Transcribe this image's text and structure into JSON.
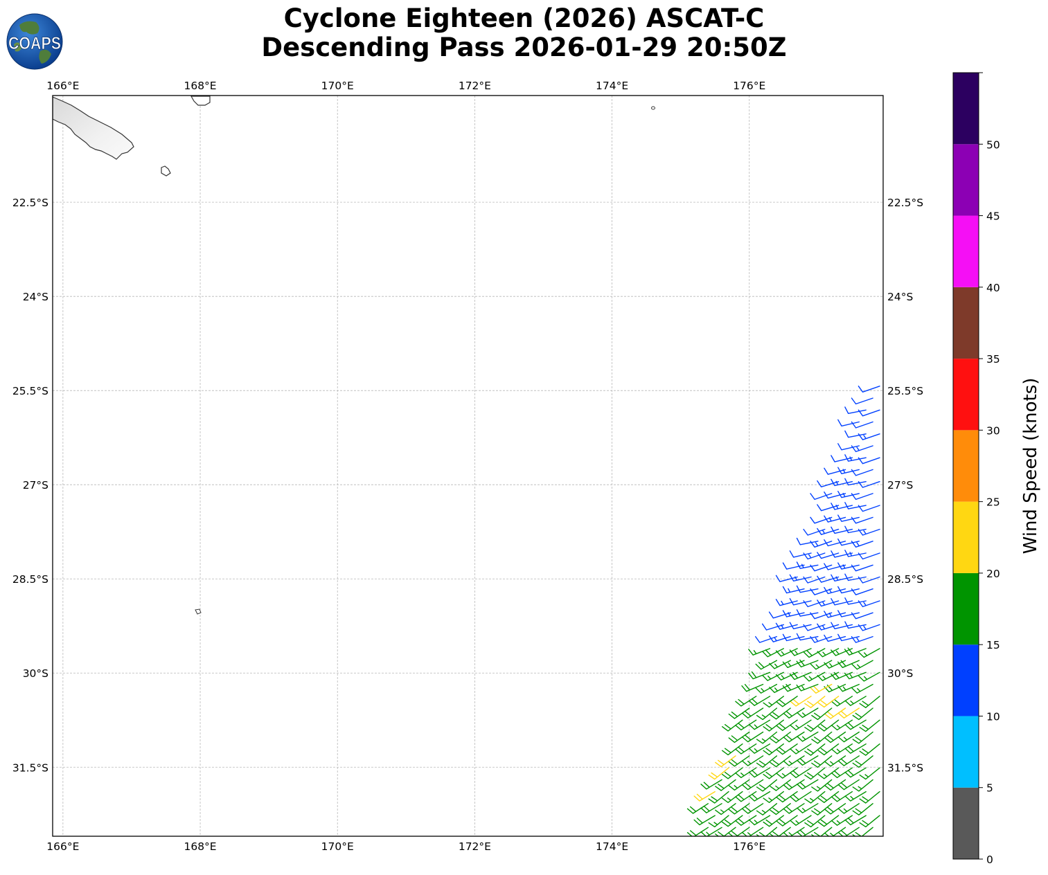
{
  "title": {
    "line1": "Cyclone Eighteen (2026) ASCAT-C",
    "line2": "Descending Pass 2026-01-29 20:50Z"
  },
  "logo": {
    "text": "COAPS"
  },
  "map": {
    "lon_range": [
      165.85,
      177.95
    ],
    "lat_range": [
      -20.8,
      -32.6
    ],
    "lon_ticks": [
      166,
      168,
      170,
      172,
      174,
      176
    ],
    "lon_tick_labels": [
      "166°E",
      "168°E",
      "170°E",
      "172°E",
      "174°E",
      "176°E"
    ],
    "lat_ticks": [
      -22.5,
      -24,
      -25.5,
      -27,
      -28.5,
      -30,
      -31.5
    ],
    "lat_tick_labels": [
      "22.5°S",
      "24°S",
      "25.5°S",
      "27°S",
      "28.5°S",
      "30°S",
      "31.5°S"
    ],
    "gridlines": true
  },
  "colorbar": {
    "label": "Wind Speed (knots)",
    "ticks": [
      0,
      5,
      10,
      15,
      20,
      25,
      30,
      35,
      40,
      45,
      50
    ],
    "tick_labels": [
      "0",
      "5",
      "10",
      "15",
      "20",
      "25",
      "30",
      "35",
      "40",
      "45",
      "50"
    ],
    "bins": [
      {
        "min": 0,
        "max": 5,
        "color": "#595959"
      },
      {
        "min": 5,
        "max": 10,
        "color": "#00bfff"
      },
      {
        "min": 10,
        "max": 15,
        "color": "#0040ff"
      },
      {
        "min": 15,
        "max": 20,
        "color": "#009400"
      },
      {
        "min": 20,
        "max": 25,
        "color": "#ffd712"
      },
      {
        "min": 25,
        "max": 30,
        "color": "#ff8c0a"
      },
      {
        "min": 30,
        "max": 35,
        "color": "#ff1010"
      },
      {
        "min": 35,
        "max": 40,
        "color": "#7e3a2a"
      },
      {
        "min": 40,
        "max": 45,
        "color": "#f50ff5"
      },
      {
        "min": 45,
        "max": 50,
        "color": "#8c00b4"
      },
      {
        "min": 50,
        "max": 55,
        "color": "#2c0060"
      }
    ]
  },
  "chart_data": {
    "type": "scatter",
    "description_units": "wind barbs: lon (°E), lat (°N, negative = south), wind speed (knots), direction wind blows from (degrees)",
    "swath_edge": [
      [
        177.9,
        -25.0
      ],
      [
        175.15,
        -32.6
      ]
    ],
    "wind_bands": [
      {
        "lat_min": -29.6,
        "lat_max": -25.0,
        "speed": 12,
        "from_deg": 255
      },
      {
        "lat_min": -30.2,
        "lat_max": -29.6,
        "speed": 17,
        "from_deg": 245
      },
      {
        "lat_min": -32.6,
        "lat_max": -30.2,
        "speed": 18,
        "from_deg": 235
      }
    ],
    "strong_points": [
      [
        177.2,
        -30.2,
        21
      ],
      [
        177.0,
        -30.4,
        22
      ],
      [
        177.3,
        -30.4,
        22
      ],
      [
        177.5,
        -30.6,
        21
      ],
      [
        175.8,
        -31.0,
        21
      ],
      [
        175.7,
        -31.3,
        21
      ],
      [
        175.6,
        -31.6,
        21
      ],
      [
        175.5,
        -31.9,
        21
      ]
    ]
  }
}
